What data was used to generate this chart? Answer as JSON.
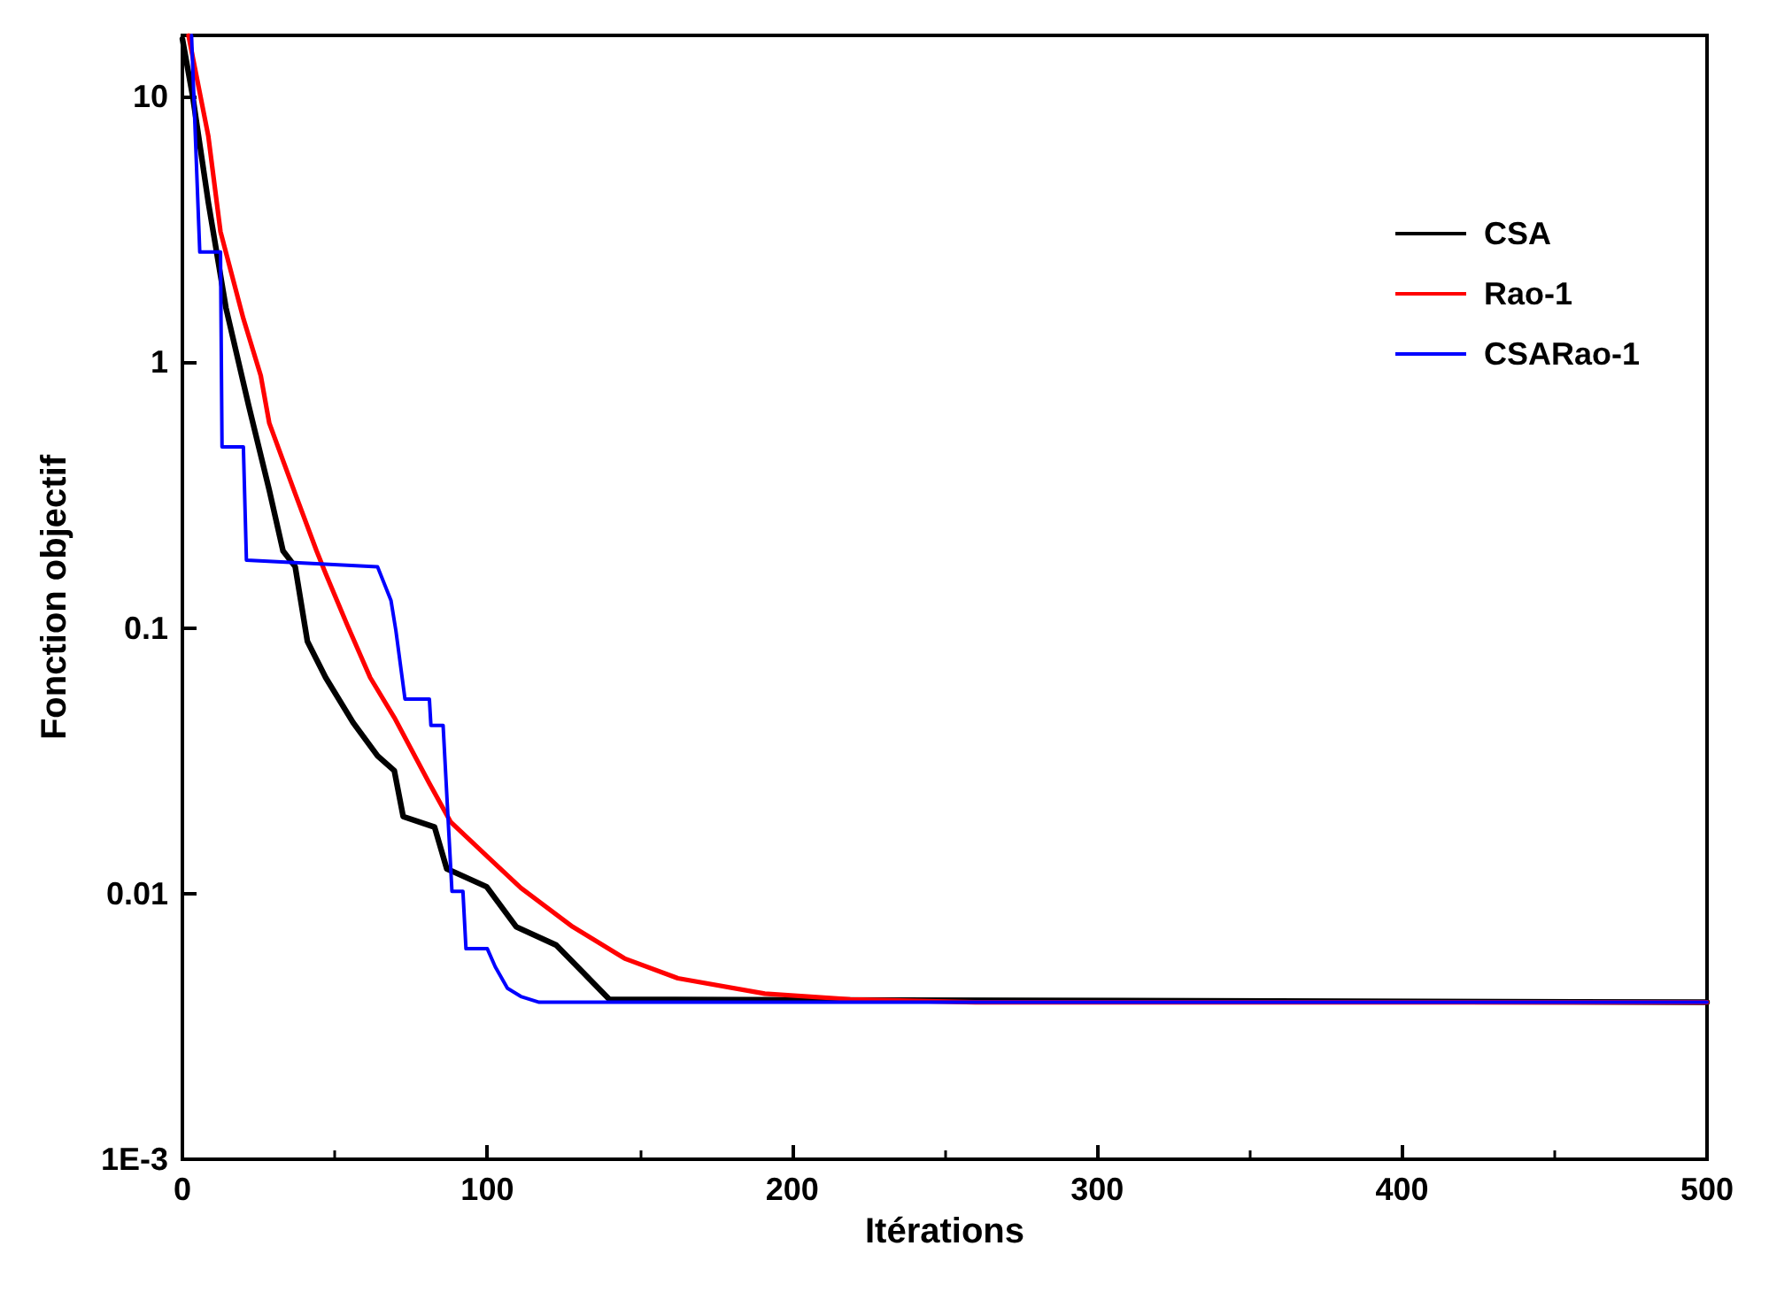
{
  "chart_data": {
    "type": "line",
    "xlabel": "Itérations",
    "ylabel": "Fonction objectif",
    "log": "y",
    "xlim": [
      0,
      500
    ],
    "xticks": [
      0,
      100,
      200,
      300,
      400,
      500
    ],
    "ylim": [
      0.001,
      17
    ],
    "yticks": [
      {
        "value": 0.001,
        "label": "1E-3"
      },
      0.01,
      0.1,
      1,
      10
    ],
    "grid": false,
    "legend": "top right",
    "marker": "none",
    "line_style": "solid",
    "series": [
      {
        "name": "CSA",
        "color": "#000000",
        "x": [
          0,
          3.4,
          8.5,
          14.3,
          21.7,
          28.5,
          33,
          37,
          41,
          47,
          56,
          64,
          69.5,
          72.4,
          82.7,
          86.7,
          99.8,
          109.5,
          122.6,
          131,
          140,
          500
        ],
        "values": [
          16.5,
          10,
          4.0,
          1.6,
          0.69,
          0.33,
          0.195,
          0.17,
          0.089,
          0.065,
          0.044,
          0.033,
          0.029,
          0.0195,
          0.0178,
          0.0124,
          0.0106,
          0.0075,
          0.0064,
          0.0051,
          0.004,
          0.0039
        ]
      },
      {
        "name": "Rao-1",
        "color": "#ff0000",
        "x": [
          2,
          8.5,
          12.5,
          20,
          25.7,
          28.5,
          37,
          44,
          47,
          54,
          61.6,
          69.5,
          81,
          88,
          100,
          111,
          128,
          145,
          162.5,
          191,
          219,
          260,
          500
        ],
        "values": [
          17,
          7.1,
          3.1,
          1.46,
          0.89,
          0.59,
          0.32,
          0.195,
          0.16,
          0.103,
          0.065,
          0.046,
          0.026,
          0.0186,
          0.0138,
          0.0105,
          0.0075,
          0.0057,
          0.0048,
          0.0042,
          0.004,
          0.0039,
          0.0039
        ]
      },
      {
        "name": "CSARao-1",
        "color": "#0000ff",
        "x": [
          3,
          5.7,
          12.5,
          13,
          20,
          21,
          64,
          68.4,
          70,
          73,
          81,
          81.5,
          85.5,
          88.4,
          92,
          93,
          100,
          102.6,
          106.6,
          111,
          117,
          500
        ],
        "values": [
          17,
          2.6,
          2.6,
          0.48,
          0.48,
          0.18,
          0.17,
          0.127,
          0.098,
          0.054,
          0.054,
          0.043,
          0.043,
          0.0102,
          0.0102,
          0.0062,
          0.0062,
          0.0053,
          0.0044,
          0.0041,
          0.0039,
          0.0039
        ]
      }
    ]
  }
}
